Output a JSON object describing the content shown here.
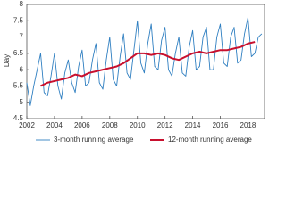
{
  "chart_data": {
    "type": "line",
    "y_label": "Day",
    "xlim": [
      2002,
      2019.2
    ],
    "xticks": [
      2002,
      2004,
      2006,
      2008,
      2010,
      2012,
      2014,
      2016,
      2018
    ],
    "ylim": [
      4.5,
      8
    ],
    "yticks": [
      4.5,
      5,
      5.5,
      6,
      6.5,
      7,
      7.5,
      8
    ],
    "grid": false,
    "legend": "bottom",
    "series": [
      {
        "name": "3-month running average",
        "color": "#2f7fc1",
        "width": 0.9,
        "x": [
          2002,
          2002.25,
          2002.5,
          2002.75,
          2003,
          2003.25,
          2003.5,
          2003.75,
          2004,
          2004.25,
          2004.5,
          2004.75,
          2005,
          2005.25,
          2005.5,
          2005.75,
          2006,
          2006.25,
          2006.5,
          2006.75,
          2007,
          2007.25,
          2007.5,
          2007.75,
          2008,
          2008.25,
          2008.5,
          2008.75,
          2009,
          2009.25,
          2009.5,
          2009.75,
          2010,
          2010.25,
          2010.5,
          2010.75,
          2011,
          2011.25,
          2011.5,
          2011.75,
          2012,
          2012.25,
          2012.5,
          2012.75,
          2013,
          2013.25,
          2013.5,
          2013.75,
          2014,
          2014.25,
          2014.5,
          2014.75,
          2015,
          2015.25,
          2015.5,
          2015.75,
          2016,
          2016.25,
          2016.5,
          2016.75,
          2017,
          2017.25,
          2017.5,
          2017.75,
          2018,
          2018.25,
          2018.5,
          2018.75,
          2019
        ],
        "values": [
          5.6,
          4.9,
          5.5,
          6.0,
          6.5,
          5.3,
          5.2,
          5.8,
          6.5,
          5.5,
          5.1,
          5.9,
          6.3,
          5.6,
          5.3,
          6.1,
          6.6,
          5.5,
          5.6,
          6.3,
          6.8,
          5.6,
          5.4,
          6.3,
          7.0,
          5.7,
          5.5,
          6.4,
          7.1,
          5.9,
          5.7,
          6.6,
          7.5,
          6.2,
          5.9,
          6.8,
          7.4,
          6.1,
          6.0,
          6.9,
          7.3,
          6.0,
          5.8,
          6.5,
          7.0,
          5.9,
          5.8,
          6.7,
          7.2,
          6.0,
          6.1,
          7.0,
          7.3,
          6.0,
          6.0,
          7.0,
          7.4,
          6.2,
          6.1,
          7.0,
          7.3,
          6.2,
          6.3,
          7.1,
          7.6,
          6.4,
          6.5,
          7.0,
          7.1
        ]
      },
      {
        "name": "12-month running average",
        "color": "#c8102e",
        "width": 2,
        "x": [
          2003,
          2003.5,
          2004,
          2004.5,
          2005,
          2005.5,
          2006,
          2006.5,
          2007,
          2007.5,
          2008,
          2008.5,
          2009,
          2009.5,
          2010,
          2010.5,
          2011,
          2011.5,
          2012,
          2012.5,
          2013,
          2013.5,
          2014,
          2014.5,
          2015,
          2015.5,
          2016,
          2016.5,
          2017,
          2017.5,
          2018,
          2018.5
        ],
        "values": [
          5.5,
          5.6,
          5.65,
          5.7,
          5.75,
          5.85,
          5.8,
          5.9,
          5.95,
          6.0,
          6.05,
          6.1,
          6.2,
          6.35,
          6.5,
          6.5,
          6.45,
          6.5,
          6.45,
          6.35,
          6.3,
          6.4,
          6.5,
          6.55,
          6.5,
          6.55,
          6.6,
          6.6,
          6.65,
          6.7,
          6.8,
          6.85
        ]
      }
    ]
  }
}
